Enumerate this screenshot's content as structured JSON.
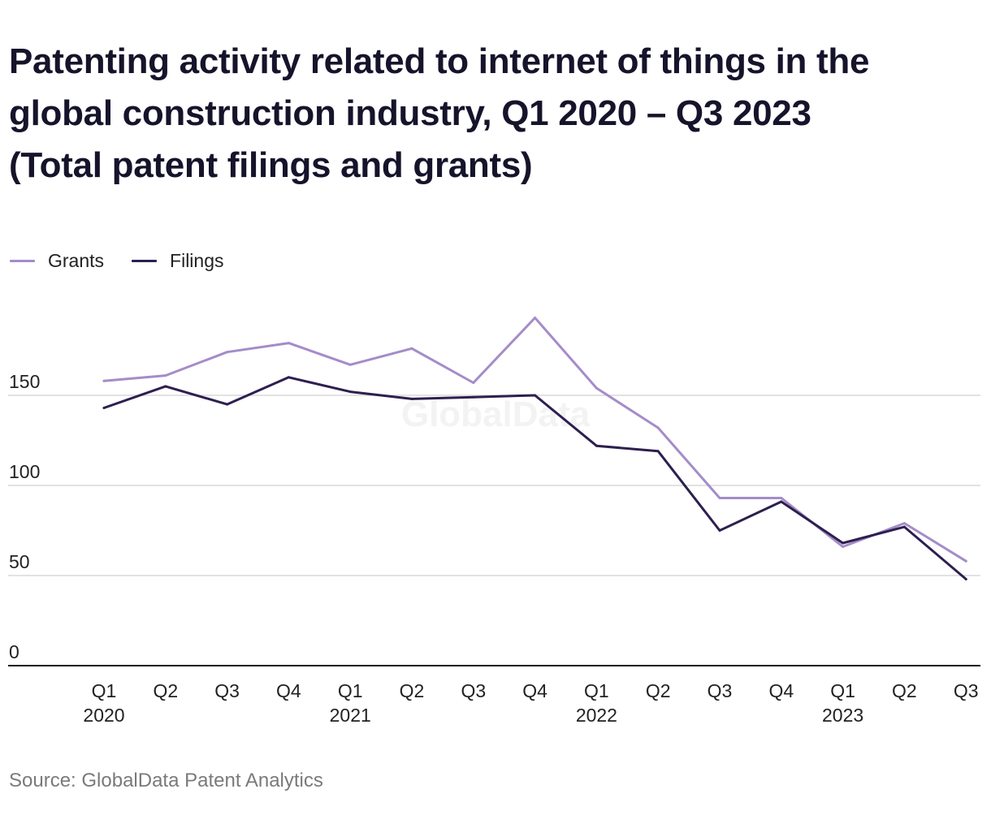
{
  "title_lines": [
    "Patenting activity related to internet of things in the",
    "global construction industry, Q1 2020 – Q3 2023",
    "(Total patent filings and grants)"
  ],
  "source": "Source: GlobalData Patent Analytics",
  "watermark": "GlobalData",
  "colors": {
    "grants": "#a48cc9",
    "filings": "#2d1f4f",
    "grid": "#d9d9d9",
    "axis": "#111111",
    "text": "#222222"
  },
  "chart_data": {
    "type": "line",
    "categories": [
      "Q1 2020",
      "Q2 2020",
      "Q3 2020",
      "Q4 2020",
      "Q1 2021",
      "Q2 2021",
      "Q3 2021",
      "Q4 2021",
      "Q1 2022",
      "Q2 2022",
      "Q3 2022",
      "Q4 2022",
      "Q1 2023",
      "Q2 2023",
      "Q3 2023"
    ],
    "tick_labels": [
      {
        "quarter": "Q1",
        "year": "2020"
      },
      {
        "quarter": "Q2",
        "year": ""
      },
      {
        "quarter": "Q3",
        "year": ""
      },
      {
        "quarter": "Q4",
        "year": ""
      },
      {
        "quarter": "Q1",
        "year": "2021"
      },
      {
        "quarter": "Q2",
        "year": ""
      },
      {
        "quarter": "Q3",
        "year": ""
      },
      {
        "quarter": "Q4",
        "year": ""
      },
      {
        "quarter": "Q1",
        "year": "2022"
      },
      {
        "quarter": "Q2",
        "year": ""
      },
      {
        "quarter": "Q3",
        "year": ""
      },
      {
        "quarter": "Q4",
        "year": ""
      },
      {
        "quarter": "Q1",
        "year": "2023"
      },
      {
        "quarter": "Q2",
        "year": ""
      },
      {
        "quarter": "Q3",
        "year": ""
      }
    ],
    "series": [
      {
        "name": "Grants",
        "values": [
          158,
          161,
          174,
          179,
          167,
          176,
          157,
          193,
          154,
          132,
          93,
          93,
          66,
          79,
          58
        ]
      },
      {
        "name": "Filings",
        "values": [
          143,
          155,
          145,
          160,
          152,
          148,
          149,
          150,
          122,
          119,
          75,
          91,
          68,
          77,
          48
        ]
      }
    ],
    "yticks": [
      0,
      50,
      100,
      150
    ],
    "ylim": [
      0,
      200
    ],
    "grid": true,
    "legend_position": "top-left"
  }
}
